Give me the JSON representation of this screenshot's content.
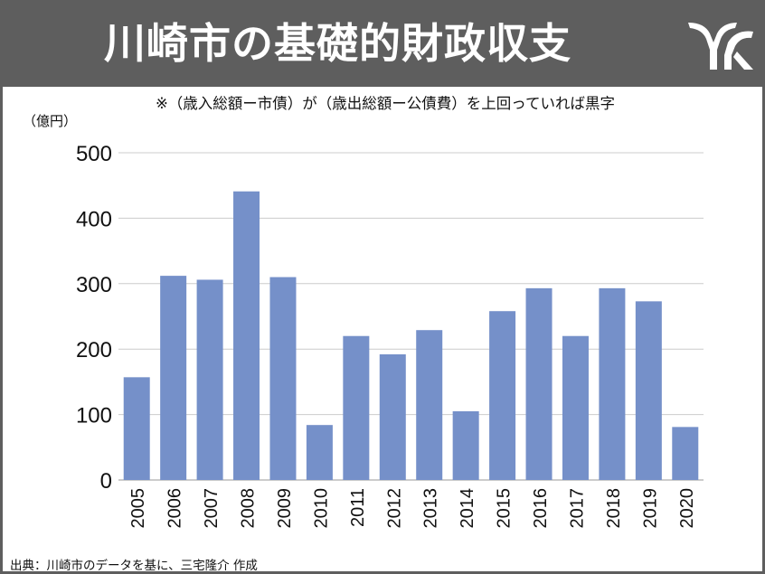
{
  "header": {
    "title": "川崎市の基礎的財政収支",
    "logo_icon": "kawasaki-city-emblem-icon"
  },
  "note": "※（歳入総額ー市債）が（歳出総額ー公債費）を上回っていれば黒字",
  "source": "出典：川崎市のデータを基に、三宅隆介 作成",
  "colors": {
    "bar": "#7590c9",
    "header_bg": "#5e5e5e",
    "grid": "#cccccc"
  },
  "chart_data": {
    "type": "bar",
    "categories": [
      "2005",
      "2006",
      "2007",
      "2008",
      "2009",
      "2010",
      "2011",
      "2012",
      "2013",
      "2014",
      "2015",
      "2016",
      "2017",
      "2018",
      "2019",
      "2020"
    ],
    "values": [
      157,
      312,
      306,
      441,
      310,
      84,
      220,
      192,
      229,
      105,
      258,
      293,
      220,
      293,
      273,
      81
    ],
    "ylabel": "（億円）",
    "ylim": [
      0,
      500
    ],
    "yticks": [
      0,
      100,
      200,
      300,
      400,
      500
    ],
    "grid": true,
    "legend": "none"
  }
}
